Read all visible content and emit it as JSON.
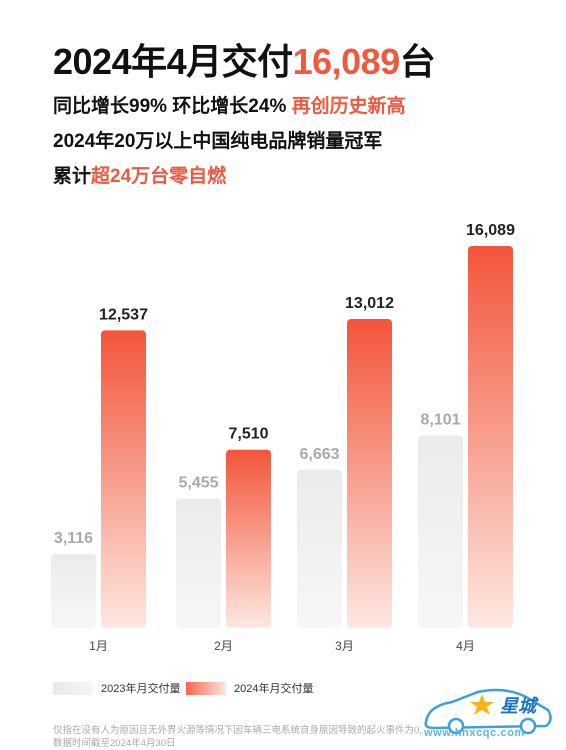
{
  "header": {
    "title_prefix": "2024年4月交付",
    "title_highlight": "16,089",
    "title_suffix": "台",
    "line1_prefix": "同比增长99% 环比增长24% ",
    "line1_highlight": "再创历史新高",
    "line2": "2024年20万以上中国纯电品牌销量冠军",
    "line3_prefix": "累计",
    "line3_highlight": "超24万台零自燃"
  },
  "colors": {
    "accent": "#ee5a41",
    "bar_2023": "#eeeeee",
    "bar_2024_top": "#f3543a",
    "bar_2024_bottom": "#fde8e1"
  },
  "chart_data": {
    "type": "bar",
    "categories": [
      "1月",
      "2月",
      "3月",
      "4月"
    ],
    "series": [
      {
        "name": "2023年月交付量",
        "values": [
          3116,
          5455,
          6663,
          8101
        ],
        "labels": [
          "3,116",
          "5,455",
          "6,663",
          "8,101"
        ]
      },
      {
        "name": "2024年月交付量",
        "values": [
          12537,
          7510,
          13012,
          16089
        ],
        "labels": [
          "12,537",
          "7,510",
          "13,012",
          "16,089"
        ]
      }
    ],
    "title": "",
    "xlabel": "",
    "ylabel": "",
    "ylim": [
      0,
      16089
    ],
    "grid": false,
    "legend": "bottom-left"
  },
  "footnote": {
    "line1": "仅指在没有人为原因且无外界火源等情况下因车辆三电系统自身原因导致的起火事件为0,",
    "line2": "数据时间截至2024年4月30日"
  },
  "watermark": {
    "text": "星城",
    "url": "www.hnxcqc.com"
  }
}
